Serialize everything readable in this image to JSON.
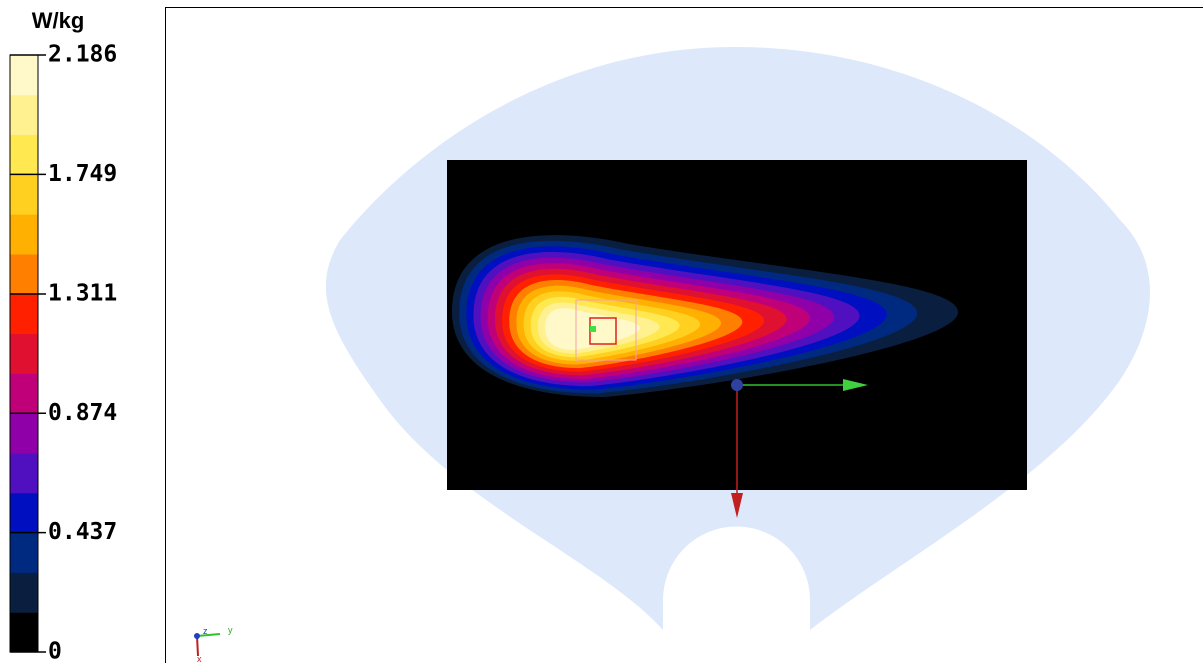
{
  "colorbar": {
    "unit": "W/kg",
    "range": [
      0,
      2.186
    ],
    "ticks": [
      0,
      0.437,
      0.874,
      1.311,
      1.749,
      2.186
    ],
    "colors": [
      "#000000",
      "#0a1f40",
      "#002a80",
      "#0010c0",
      "#5010c0",
      "#9000a8",
      "#c00078",
      "#e01030",
      "#ff2000",
      "#ff8000",
      "#ffb000",
      "#ffd020",
      "#ffe850",
      "#fff090",
      "#fff8c8"
    ]
  },
  "triad": {
    "x": "x",
    "y": "y",
    "z": "z"
  }
}
